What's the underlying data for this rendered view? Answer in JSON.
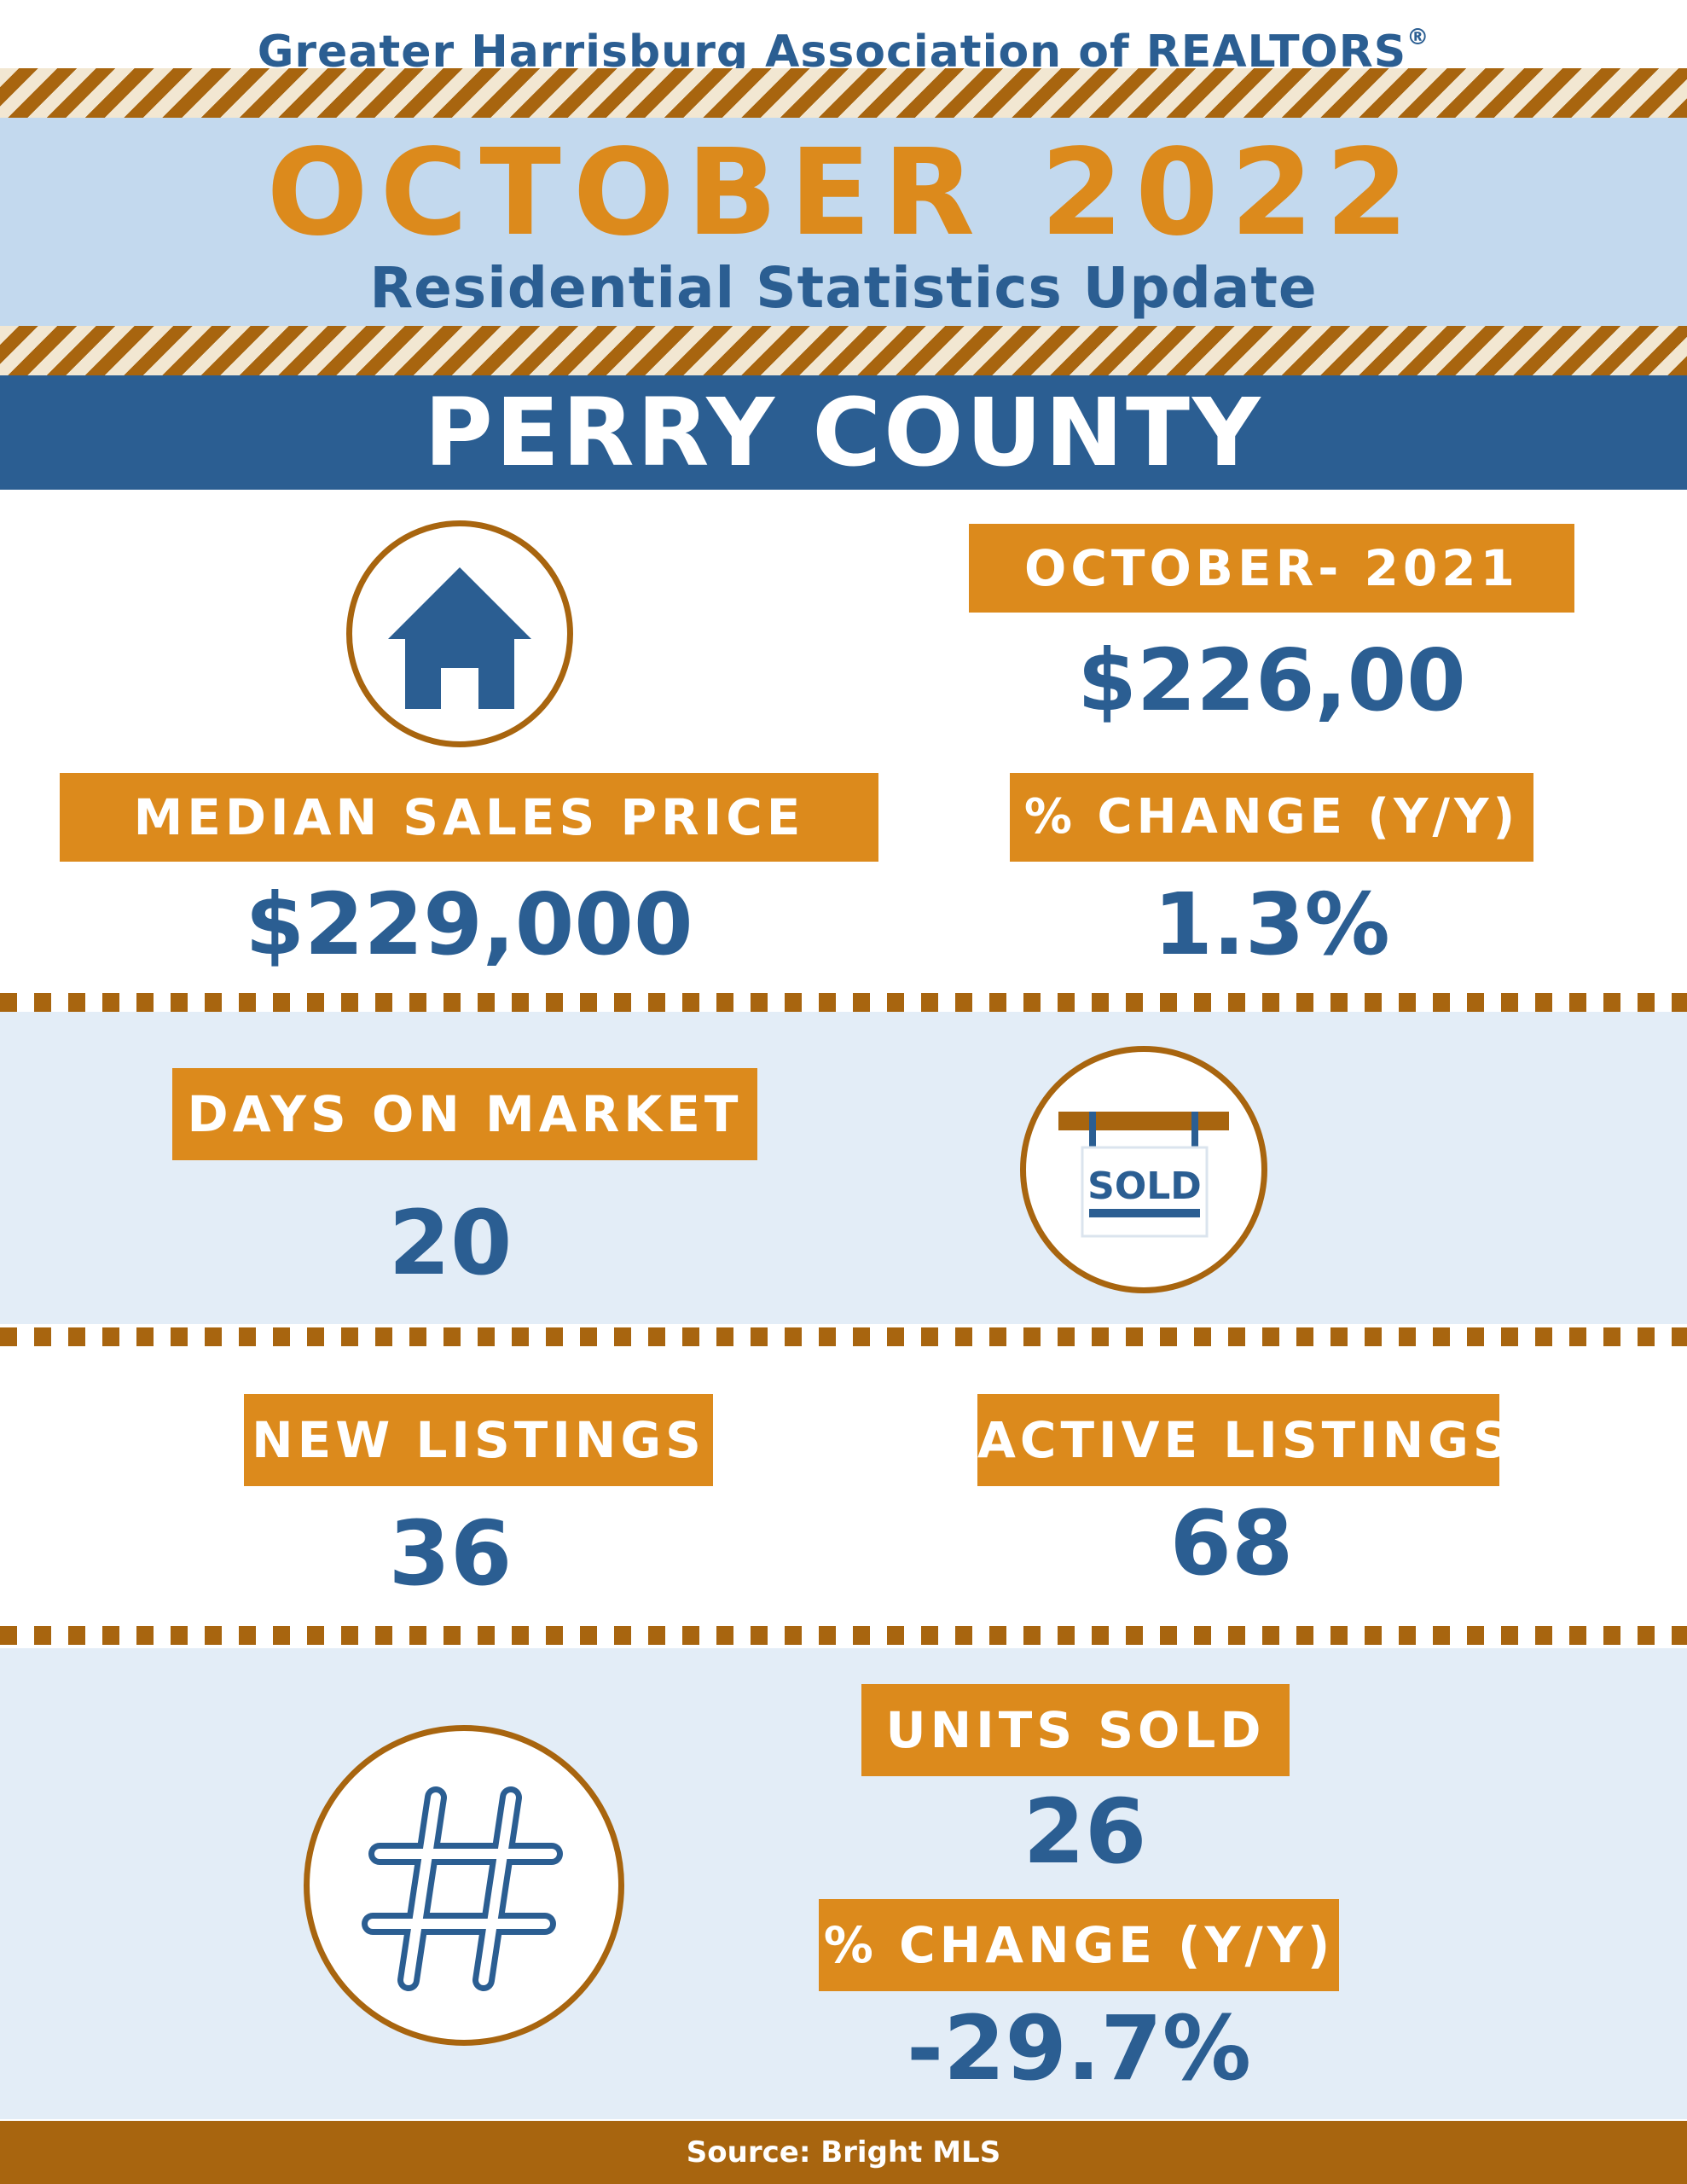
{
  "header": {
    "organization": "Greater Harrisburg Association of REALTORS",
    "registered_mark": "®",
    "month_year": "OCTOBER 2022",
    "subtitle": "Residential Statistics Update"
  },
  "county": "PERRY COUNTY",
  "median_sales_price": {
    "label": "MEDIAN SALES PRICE",
    "value": "$229,000",
    "icon": "house-icon"
  },
  "prior_year": {
    "label": "OCTOBER- 2021",
    "value": "$226,00",
    "change_label": "% CHANGE (Y/Y)",
    "change_value": "1.3%"
  },
  "days_on_market": {
    "label": "DAYS ON MARKET",
    "value": "20",
    "icon": "sold-sign-icon",
    "sign_text": "SOLD"
  },
  "new_listings": {
    "label": "NEW LISTINGS",
    "value": "36"
  },
  "active_listings": {
    "label": "ACTIVE LISTINGS",
    "value": "68"
  },
  "units_sold": {
    "label": "UNITS SOLD",
    "value": "26",
    "change_label": "% CHANGE (Y/Y)",
    "change_value": "-29.7%",
    "icon": "hashtag-icon"
  },
  "footer": {
    "source": "Source: Bright MLS"
  },
  "colors": {
    "blue": "#2b5e92",
    "orange": "#dc8a1c",
    "brown": "#a8650f",
    "light_blue": "#c3d9ee",
    "pale_blue": "#e3edf7"
  }
}
